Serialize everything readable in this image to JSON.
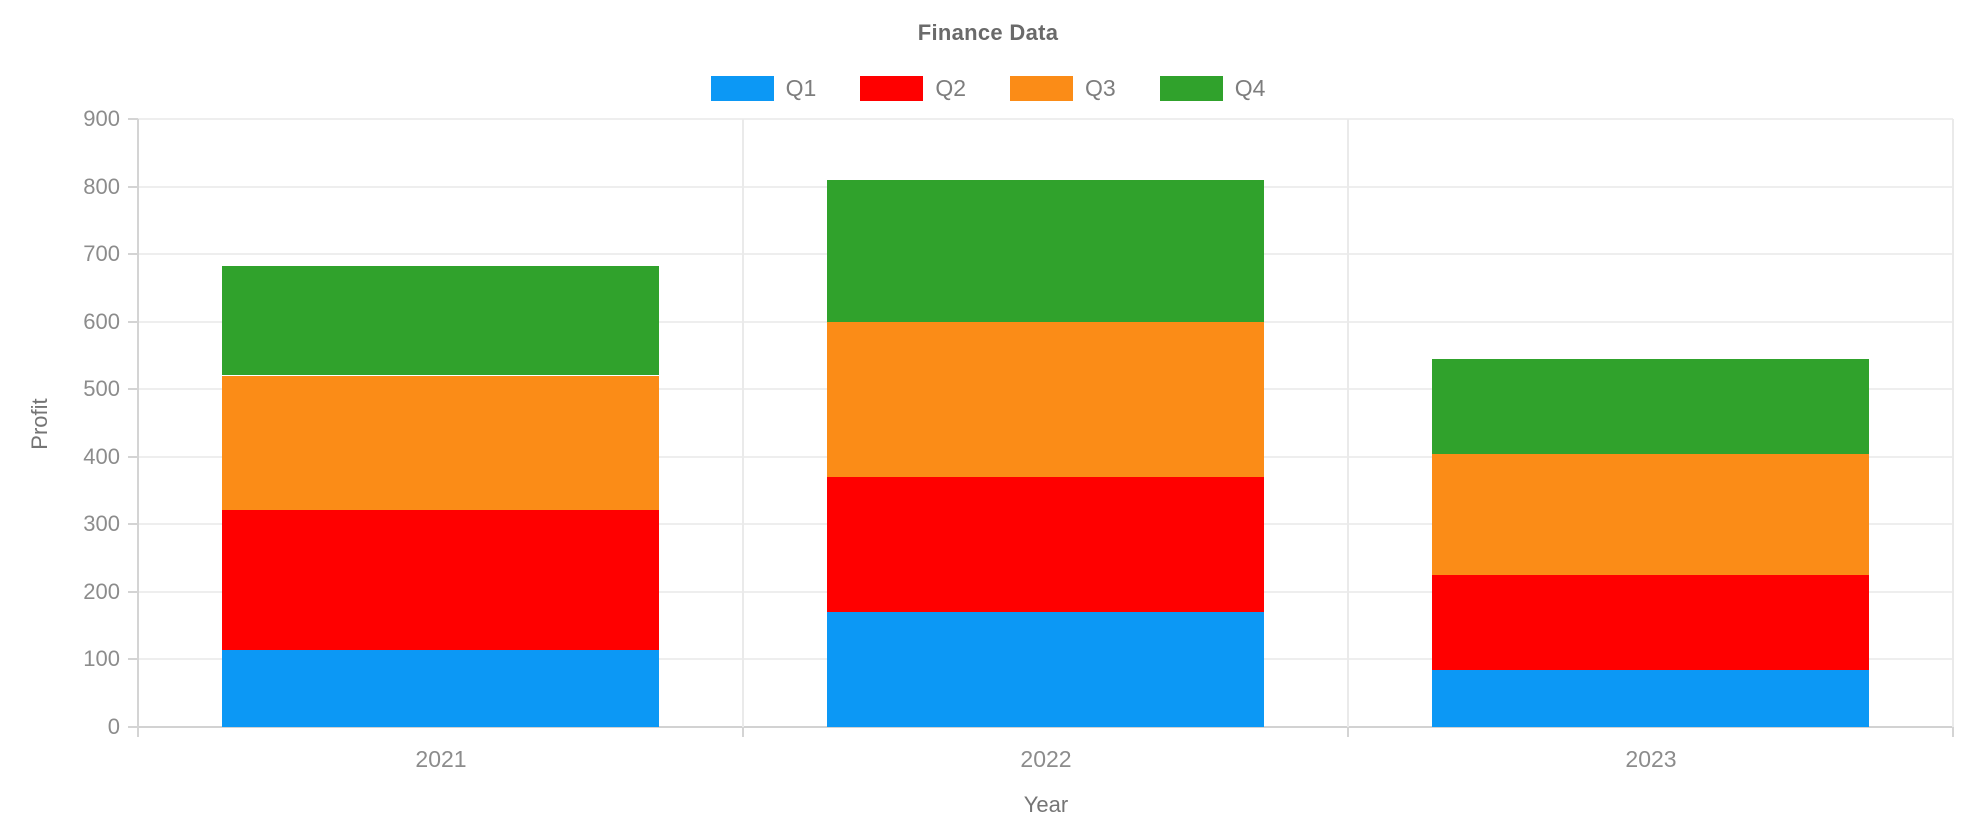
{
  "chart_data": {
    "type": "bar",
    "stacked": true,
    "title": "Finance Data",
    "xlabel": "Year",
    "ylabel": "Profit",
    "categories": [
      "2021",
      "2022",
      "2023"
    ],
    "series": [
      {
        "name": "Q1",
        "color": "#0c98f5",
        "values": [
          114,
          170,
          85
        ]
      },
      {
        "name": "Q2",
        "color": "#ff0000",
        "values": [
          208,
          200,
          140
        ]
      },
      {
        "name": "Q3",
        "color": "#fb8c17",
        "values": [
          198,
          230,
          180
        ]
      },
      {
        "name": "Q4",
        "color": "#30a22c",
        "values": [
          162,
          210,
          140
        ]
      }
    ],
    "stack_totals": [
      682,
      810,
      545
    ],
    "ylim": [
      0,
      900
    ],
    "y_ticks": [
      0,
      100,
      200,
      300,
      400,
      500,
      600,
      700,
      800,
      900
    ],
    "grid": true,
    "legend_position": "top",
    "legend_labels": [
      "Q1",
      "Q2",
      "Q3",
      "Q4"
    ],
    "colors": {
      "q1_blue": "#0c98f5",
      "q2_red": "#ff0000",
      "q3_orange": "#fb8c17",
      "q4_green": "#30a22c",
      "grid_line": "#eeeeee",
      "axis_line": "#d4d4d4",
      "tick_text": "#8c8c8c",
      "axis_title_text": "#757575",
      "title_text": "#6a6a6a"
    }
  }
}
